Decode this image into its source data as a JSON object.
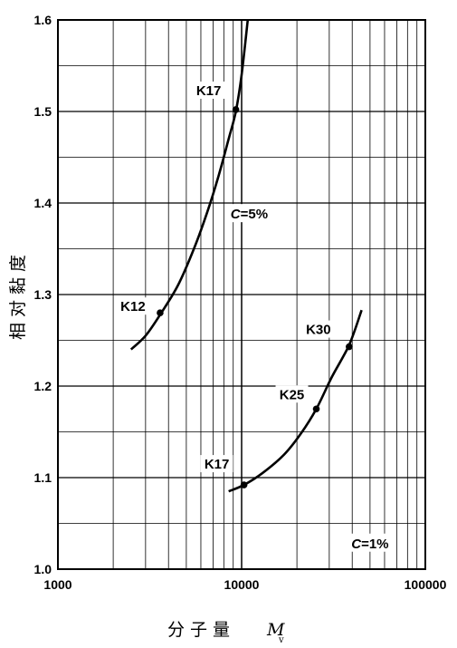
{
  "chart_data": {
    "type": "line",
    "xscale": "log",
    "xlim": [
      1000,
      100000
    ],
    "ylim": [
      1.0,
      1.6
    ],
    "grid": true,
    "x_ticks": [
      "1000",
      "10000",
      "100000"
    ],
    "y_ticks": [
      "1.0",
      "1.1",
      "1.2",
      "1.3",
      "1.4",
      "1.5",
      "1.6"
    ],
    "xlabel": "分子量",
    "xlabel_var": "M",
    "xlabel_sub": "v",
    "ylabel": "相对黏度",
    "series": [
      {
        "name": "C=5%",
        "x": [
          2500,
          3000,
          3600,
          4500,
          5500,
          6500,
          7500,
          8500,
          9300,
          10000,
          10800
        ],
        "y": [
          1.24,
          1.255,
          1.278,
          1.31,
          1.35,
          1.39,
          1.43,
          1.47,
          1.5,
          1.54,
          1.6
        ],
        "points": [
          {
            "label": "K12",
            "x": 3600,
            "y": 1.28
          },
          {
            "label": "K17",
            "x": 9300,
            "y": 1.502
          }
        ]
      },
      {
        "name": "C=1%",
        "x": [
          8500,
          10300,
          13000,
          17000,
          21000,
          25500,
          31000,
          38500,
          45000
        ],
        "y": [
          1.085,
          1.092,
          1.105,
          1.125,
          1.148,
          1.175,
          1.21,
          1.245,
          1.283
        ],
        "points": [
          {
            "label": "K17",
            "x": 10300,
            "y": 1.092
          },
          {
            "label": "K25",
            "x": 25500,
            "y": 1.175
          },
          {
            "label": "K30",
            "x": 38500,
            "y": 1.243
          }
        ]
      }
    ],
    "annotations": [
      {
        "text_var": "C",
        "text_rest": "=5%",
        "x": 11000,
        "y": 1.385
      },
      {
        "text_var": "C",
        "text_rest": "=1%",
        "x": 50000,
        "y": 1.025
      }
    ]
  }
}
